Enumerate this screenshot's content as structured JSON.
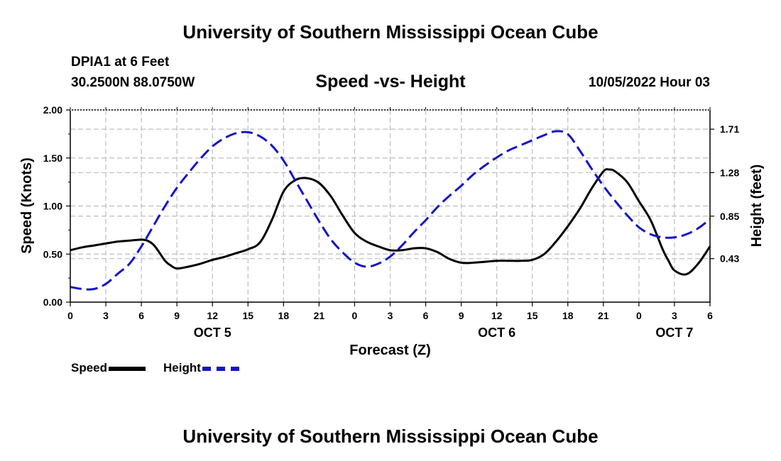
{
  "header": {
    "title": "University of Southern Mississippi Ocean Cube",
    "station": "DPIA1 at 6 Feet",
    "coords": "30.2500N  88.0750W",
    "date": "10/05/2022 Hour 03",
    "footer_title": "University of Southern Mississippi Ocean Cube"
  },
  "legend": {
    "speed": "Speed",
    "height": "Height"
  },
  "colors": {
    "speed": "#000000",
    "height": "#1414c8",
    "grid": "#bdbdbd"
  },
  "chart_data": {
    "type": "line",
    "title": "Speed -vs- Height",
    "xlabel": "Forecast (Z)",
    "ylabel": "Speed (Knots)",
    "y2label": "Height (feet)",
    "x_range": [
      0,
      54
    ],
    "ylim": [
      0,
      2
    ],
    "y2lim": [
      0,
      1.9
    ],
    "x_ticks": [
      {
        "x": 0,
        "label": "0"
      },
      {
        "x": 3,
        "label": "3"
      },
      {
        "x": 6,
        "label": "6"
      },
      {
        "x": 9,
        "label": "9"
      },
      {
        "x": 12,
        "label": "12"
      },
      {
        "x": 15,
        "label": "15"
      },
      {
        "x": 18,
        "label": "18"
      },
      {
        "x": 21,
        "label": "21"
      },
      {
        "x": 24,
        "label": "0"
      },
      {
        "x": 27,
        "label": "3"
      },
      {
        "x": 30,
        "label": "6"
      },
      {
        "x": 33,
        "label": "9"
      },
      {
        "x": 36,
        "label": "12"
      },
      {
        "x": 39,
        "label": "15"
      },
      {
        "x": 42,
        "label": "18"
      },
      {
        "x": 45,
        "label": "21"
      },
      {
        "x": 48,
        "label": "0"
      },
      {
        "x": 51,
        "label": "3"
      },
      {
        "x": 54,
        "label": "6"
      }
    ],
    "day_labels": [
      {
        "x": 12,
        "label": "OCT 5"
      },
      {
        "x": 36,
        "label": "OCT 6"
      },
      {
        "x": 51,
        "label": "OCT 7"
      }
    ],
    "y_ticks": [
      {
        "v": 0,
        "label": "0.00"
      },
      {
        "v": 0.5,
        "label": "0.50"
      },
      {
        "v": 1.0,
        "label": "1.00"
      },
      {
        "v": 1.5,
        "label": "1.50"
      },
      {
        "v": 2.0,
        "label": "2.00"
      }
    ],
    "y2_ticks": [
      {
        "v": 0.43,
        "label": "0.43"
      },
      {
        "v": 0.85,
        "label": "0.85"
      },
      {
        "v": 1.28,
        "label": "1.28"
      },
      {
        "v": 1.71,
        "label": "1.71"
      }
    ],
    "series": [
      {
        "name": "Speed",
        "axis": "left",
        "x": [
          0,
          1,
          2,
          3,
          4,
          5,
          6,
          6.5,
          7,
          7.5,
          8,
          8.5,
          9,
          10,
          11,
          12,
          13,
          14,
          15,
          16,
          17,
          18,
          19,
          20,
          21,
          22,
          23,
          24,
          25,
          26,
          27,
          28,
          29,
          30,
          31,
          32,
          33,
          34,
          35,
          36,
          37,
          38,
          39,
          40,
          41,
          42,
          43,
          44,
          45,
          45.5,
          46,
          47,
          48,
          49,
          50,
          50.5,
          51,
          52,
          53,
          54
        ],
        "values": [
          0.54,
          0.57,
          0.59,
          0.61,
          0.63,
          0.64,
          0.65,
          0.64,
          0.6,
          0.52,
          0.43,
          0.38,
          0.35,
          0.37,
          0.4,
          0.44,
          0.47,
          0.51,
          0.55,
          0.62,
          0.85,
          1.15,
          1.27,
          1.29,
          1.24,
          1.1,
          0.9,
          0.72,
          0.63,
          0.58,
          0.54,
          0.54,
          0.56,
          0.56,
          0.52,
          0.45,
          0.41,
          0.41,
          0.42,
          0.43,
          0.43,
          0.43,
          0.44,
          0.5,
          0.63,
          0.79,
          0.97,
          1.18,
          1.36,
          1.38,
          1.36,
          1.25,
          1.05,
          0.85,
          0.55,
          0.43,
          0.33,
          0.29,
          0.4,
          0.58
        ]
      },
      {
        "name": "Height",
        "axis": "right",
        "x": [
          0,
          1,
          2,
          3,
          4,
          5,
          6,
          7,
          8,
          9,
          10,
          11,
          12,
          13,
          14,
          15,
          16,
          17,
          18,
          19,
          20,
          21,
          22,
          23,
          24,
          25,
          26,
          27,
          28,
          29,
          30,
          31,
          32,
          33,
          34,
          35,
          36,
          37,
          38,
          39,
          40,
          41,
          42,
          43,
          44,
          45,
          46,
          47,
          48,
          49,
          50,
          51,
          52,
          53,
          54
        ],
        "values": [
          0.15,
          0.13,
          0.13,
          0.18,
          0.28,
          0.38,
          0.55,
          0.75,
          0.95,
          1.13,
          1.28,
          1.42,
          1.54,
          1.62,
          1.67,
          1.68,
          1.64,
          1.55,
          1.4,
          1.2,
          1.0,
          0.8,
          0.62,
          0.49,
          0.39,
          0.35,
          0.38,
          0.45,
          0.56,
          0.69,
          0.81,
          0.94,
          1.05,
          1.15,
          1.26,
          1.35,
          1.43,
          1.5,
          1.55,
          1.6,
          1.65,
          1.69,
          1.66,
          1.5,
          1.32,
          1.15,
          1.0,
          0.86,
          0.74,
          0.67,
          0.64,
          0.64,
          0.67,
          0.73,
          0.82
        ]
      }
    ]
  }
}
